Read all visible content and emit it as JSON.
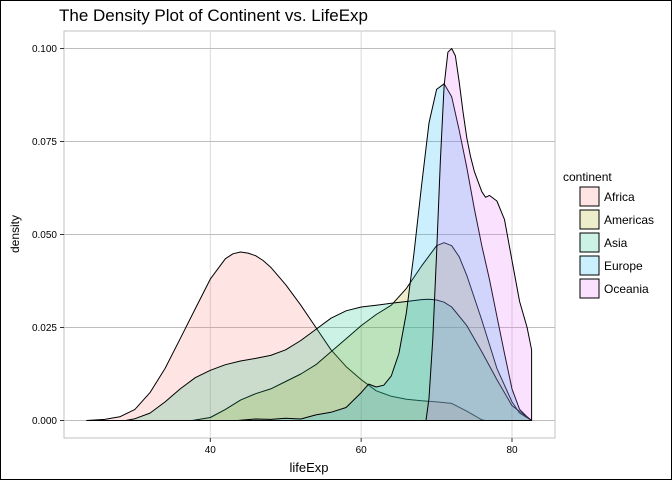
{
  "chart_data": {
    "type": "area",
    "title": "The Density Plot of Continent vs. LifeExp",
    "xlabel": "lifeExp",
    "ylabel": "density",
    "xlim": [
      20.6,
      85.7
    ],
    "ylim": [
      -0.0047,
      0.1047
    ],
    "xticks": [
      40,
      60,
      80
    ],
    "yticks": [
      0.0,
      0.025,
      0.05,
      0.075,
      0.1
    ],
    "ytick_labels": [
      "0.000",
      "0.025",
      "0.050",
      "0.075",
      "0.100"
    ],
    "grid": true,
    "legend_title": "continent",
    "legend_position": "right",
    "series": [
      {
        "name": "Africa",
        "color": "#F8766D",
        "x": [
          23.6,
          26,
          28,
          30,
          32,
          34,
          36,
          38,
          40,
          42,
          43,
          44,
          45,
          46,
          47,
          48,
          50,
          52,
          54,
          56,
          58,
          60,
          62,
          64,
          66,
          68,
          70,
          72,
          74,
          76,
          76.4
        ],
        "y": [
          0,
          0.0003,
          0.001,
          0.003,
          0.0075,
          0.014,
          0.022,
          0.03,
          0.038,
          0.0435,
          0.0448,
          0.0453,
          0.045,
          0.0443,
          0.043,
          0.0412,
          0.0365,
          0.031,
          0.025,
          0.019,
          0.0145,
          0.011,
          0.008,
          0.0065,
          0.0057,
          0.0053,
          0.005,
          0.0046,
          0.0025,
          0.0002,
          0
        ]
      },
      {
        "name": "Americas",
        "color": "#A3A500",
        "x": [
          37.6,
          40,
          42,
          44,
          46,
          48,
          50,
          52,
          54,
          56,
          58,
          60,
          62,
          64,
          66,
          68,
          70,
          71,
          72,
          73,
          74,
          76,
          78,
          80,
          81,
          82.6
        ],
        "y": [
          0,
          0.0008,
          0.003,
          0.0055,
          0.0072,
          0.0085,
          0.0105,
          0.0125,
          0.015,
          0.0185,
          0.022,
          0.0255,
          0.0285,
          0.031,
          0.0355,
          0.0415,
          0.047,
          0.0478,
          0.047,
          0.044,
          0.039,
          0.027,
          0.014,
          0.005,
          0.002,
          0
        ]
      },
      {
        "name": "Asia",
        "color": "#00BF7D",
        "x": [
          28.8,
          30,
          32,
          34,
          36,
          38,
          40,
          42,
          44,
          46,
          48,
          50,
          52,
          54,
          56,
          58,
          60,
          62,
          64,
          66,
          68,
          69,
          70,
          71,
          72,
          74,
          76,
          78,
          80,
          82.6
        ],
        "y": [
          0,
          0.0005,
          0.002,
          0.005,
          0.0085,
          0.0115,
          0.0135,
          0.015,
          0.016,
          0.0167,
          0.0175,
          0.019,
          0.0215,
          0.0245,
          0.0275,
          0.0295,
          0.0305,
          0.031,
          0.0315,
          0.032,
          0.0325,
          0.0326,
          0.0324,
          0.0318,
          0.0305,
          0.0255,
          0.0185,
          0.011,
          0.004,
          0
        ]
      },
      {
        "name": "Europe",
        "color": "#00B0F6",
        "x": [
          43.6,
          46,
          48,
          50,
          52,
          54,
          56,
          58,
          60,
          61,
          62,
          63,
          64,
          65,
          66,
          67,
          68,
          69,
          70,
          71,
          72,
          73,
          74,
          75,
          76,
          77,
          78,
          79,
          80,
          81,
          82,
          82.6
        ],
        "y": [
          0,
          0.0004,
          0.0003,
          0.0006,
          0.0004,
          0.0015,
          0.0022,
          0.0035,
          0.0075,
          0.0098,
          0.009,
          0.0095,
          0.012,
          0.018,
          0.029,
          0.045,
          0.063,
          0.08,
          0.089,
          0.0905,
          0.087,
          0.078,
          0.068,
          0.057,
          0.047,
          0.038,
          0.028,
          0.018,
          0.0085,
          0.003,
          0.001,
          0
        ]
      },
      {
        "name": "Oceania",
        "color": "#E76BF3",
        "x": [
          68.6,
          69,
          69.5,
          70,
          70.5,
          71,
          71.5,
          72,
          72.5,
          73,
          73.5,
          74,
          74.5,
          75,
          76,
          76.5,
          77,
          78,
          79,
          80,
          81,
          82,
          82.6
        ],
        "y": [
          0,
          0.006,
          0.022,
          0.045,
          0.07,
          0.09,
          0.099,
          0.1,
          0.098,
          0.091,
          0.083,
          0.076,
          0.071,
          0.067,
          0.0615,
          0.06,
          0.0605,
          0.059,
          0.054,
          0.043,
          0.032,
          0.025,
          0.019
        ]
      }
    ]
  }
}
